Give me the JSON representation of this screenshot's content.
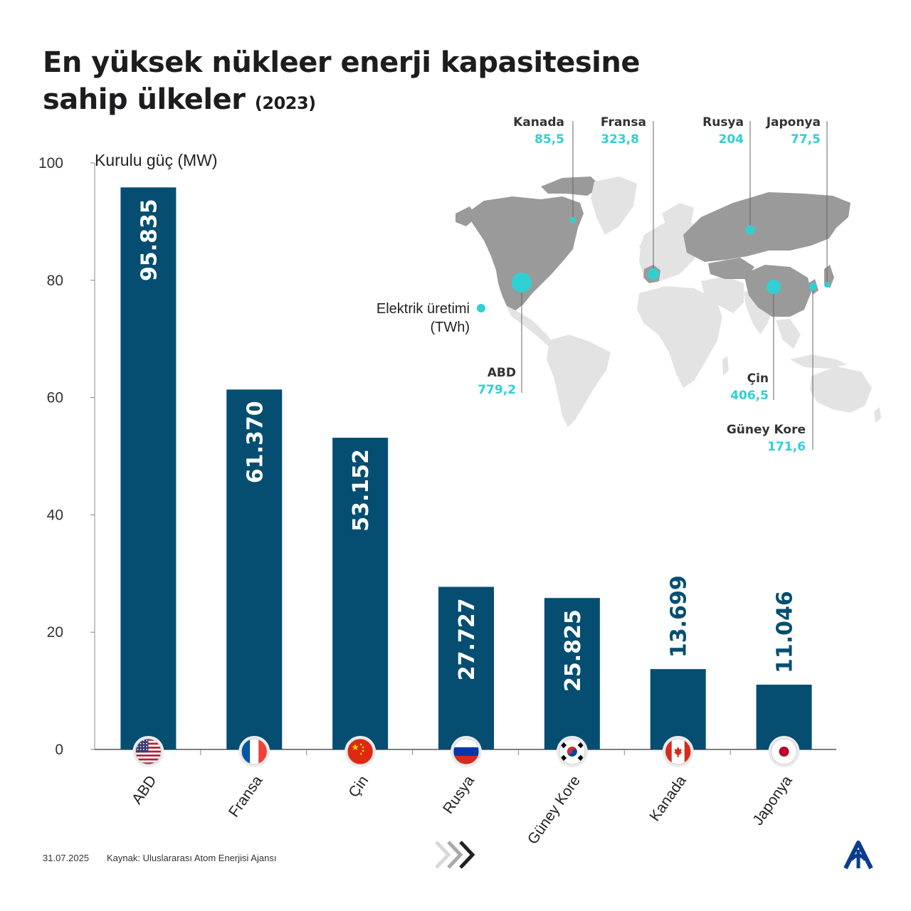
{
  "title_line1": "En yüksek nükleer enerji kapasitesine",
  "title_line2": "sahip ülkeler",
  "title_year": "(2023)",
  "chart_data": {
    "type": "bar",
    "title": "En yüksek nükleer enerji kapasitesine sahip ülkeler (2023)",
    "ylabel": "Kurulu güç (MW)",
    "xlabel": "",
    "ylim": [
      0,
      100
    ],
    "yticks": [
      0,
      20,
      40,
      60,
      80,
      100
    ],
    "categories": [
      "ABD",
      "Fransa",
      "Çin",
      "Rusya",
      "Güney Kore",
      "Kanada",
      "Japonya"
    ],
    "values": [
      95.835,
      61.37,
      53.152,
      27.727,
      25.825,
      13.699,
      11.046
    ],
    "value_labels": [
      "95.835",
      "61.370",
      "53.152",
      "27.727",
      "25.825",
      "13.699",
      "11.046"
    ],
    "bar_color": "#054e72"
  },
  "map": {
    "legend_label_line1": "Elektrik üretimi",
    "legend_label_line2": "(TWh)",
    "dot_color": "#2fd0d4",
    "callouts": [
      {
        "name": "Kanada",
        "value": "85,5"
      },
      {
        "name": "Fransa",
        "value": "323,8"
      },
      {
        "name": "Rusya",
        "value": "204"
      },
      {
        "name": "Japonya",
        "value": "77,5"
      },
      {
        "name": "ABD",
        "value": "779,2"
      },
      {
        "name": "Çin",
        "value": "406,5"
      },
      {
        "name": "Güney Kore",
        "value": "171,6"
      }
    ]
  },
  "footer": {
    "date": "31.07.2025",
    "source": "Kaynak: Uluslararası Atom Enerjisi Ajansı"
  },
  "icons": [
    "flag-usa-icon",
    "flag-france-icon",
    "flag-china-icon",
    "flag-russia-icon",
    "flag-south-korea-icon",
    "flag-canada-icon",
    "flag-japan-icon",
    "arrows-icon",
    "aa-logo-icon"
  ]
}
